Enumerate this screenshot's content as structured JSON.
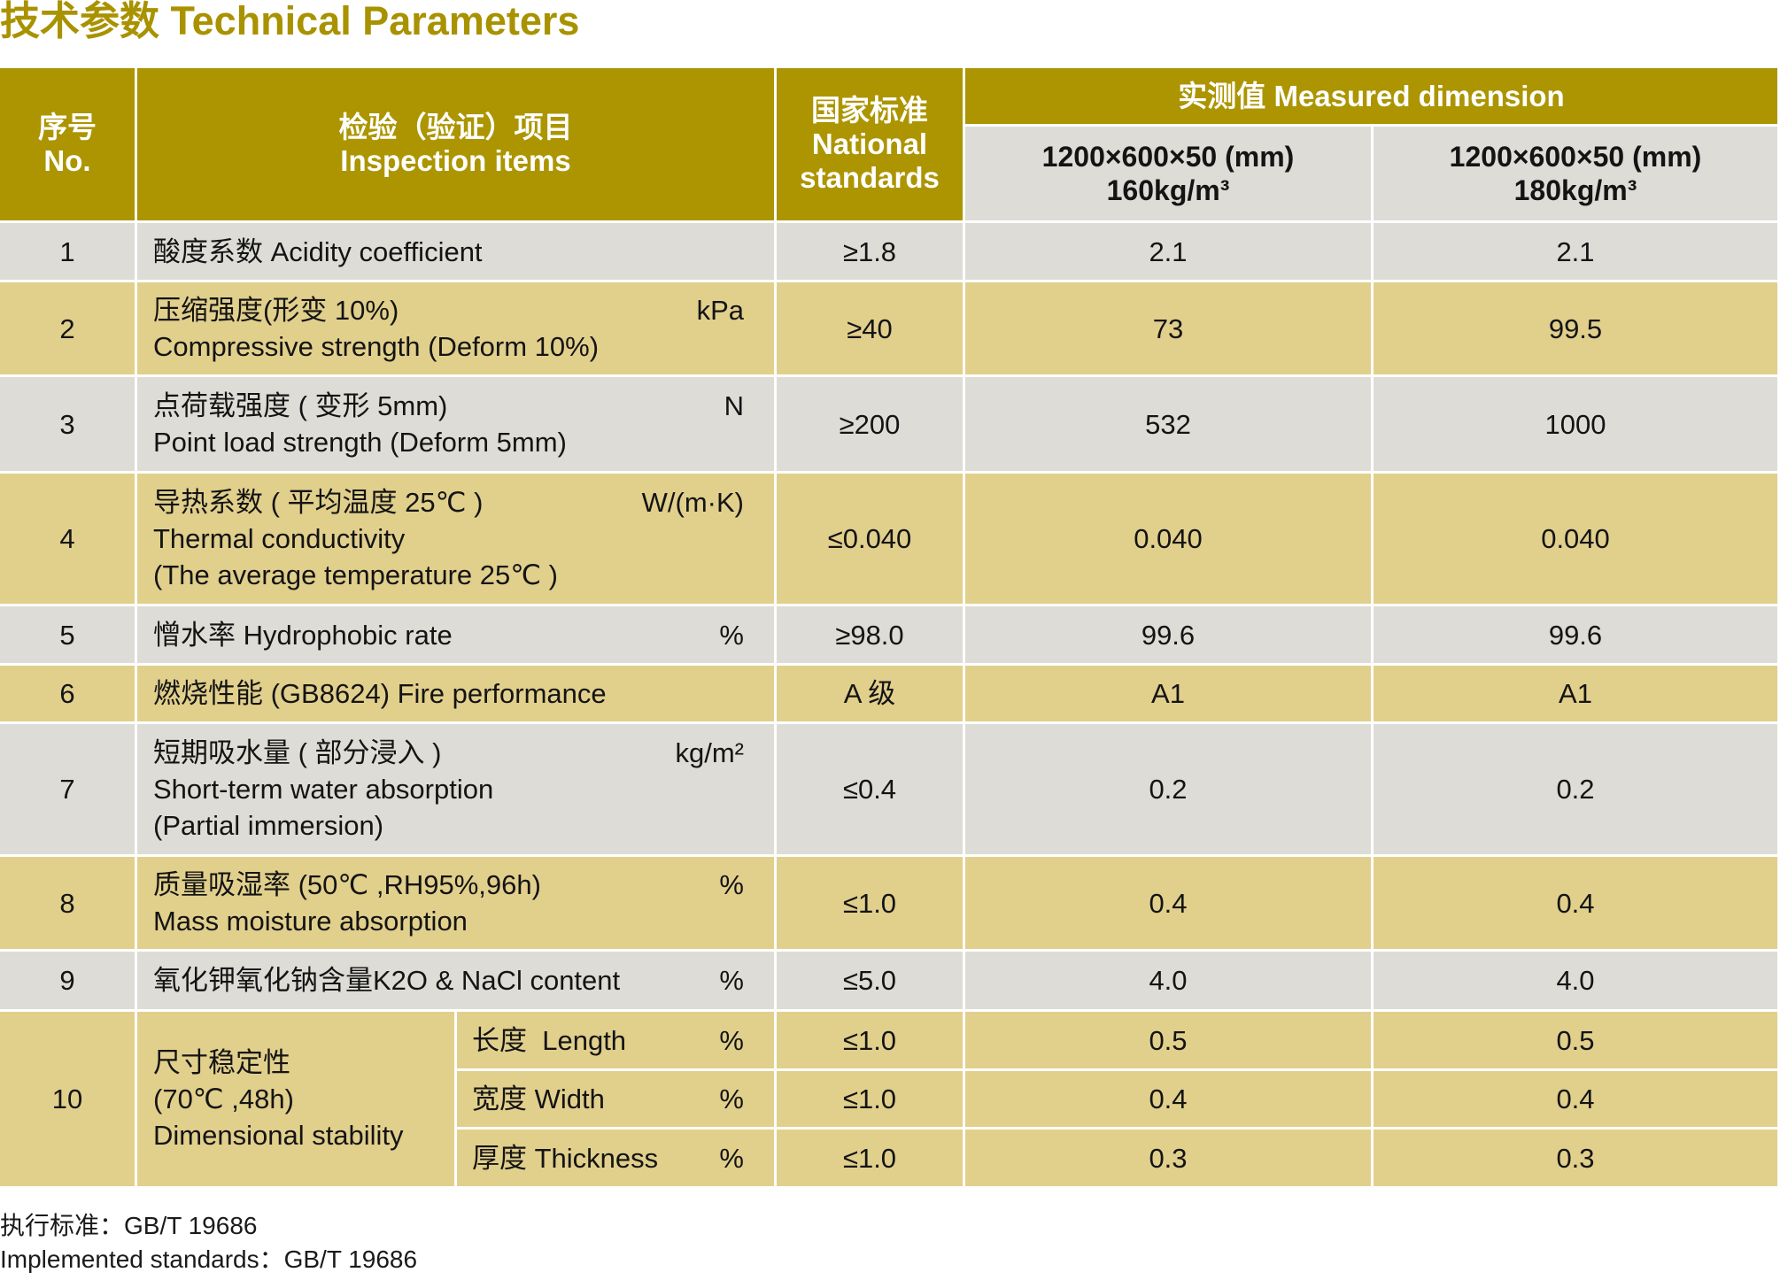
{
  "title": "技术参数 Technical Parameters",
  "colors": {
    "title": "#a99200",
    "header": "#ac9500",
    "row_gray": "#dddcd6",
    "row_tan": "#e1cf8c"
  },
  "table": {
    "header": {
      "no_zh": "序号",
      "no_en": "No.",
      "item_zh": "检验（验证）项目",
      "item_en": "Inspection items",
      "standard_zh": "国家标准",
      "standard_en": "National standards",
      "measured": "实测值 Measured dimension",
      "spec_a": {
        "size": "1200×600×50 (mm)",
        "density": "160kg/m³"
      },
      "spec_b": {
        "size": "1200×600×50 (mm)",
        "density": "180kg/m³"
      }
    },
    "rows": [
      {
        "no": "1",
        "lines": [
          "酸度系数 Acidity coefficient"
        ],
        "standard": "≥1.8",
        "value_a": "2.1",
        "value_b": "2.1"
      },
      {
        "no": "2",
        "lines": [
          "压缩强度(形变 10%)",
          "Compressive strength (Deform 10%)"
        ],
        "unit": "kPa",
        "standard": "≥40",
        "value_a": "73",
        "value_b": "99.5"
      },
      {
        "no": "3",
        "lines": [
          "点荷载强度 ( 变形 5mm)",
          "Point load strength (Deform 5mm)"
        ],
        "unit": "N",
        "standard": "≥200",
        "value_a": "532",
        "value_b": "1000"
      },
      {
        "no": "4",
        "lines": [
          "导热系数 ( 平均温度 25℃ )",
          "Thermal conductivity",
          "(The average temperature 25℃ )"
        ],
        "unit": "W/(m·K)",
        "standard": "≤0.040",
        "value_a": "0.040",
        "value_b": "0.040"
      },
      {
        "no": "5",
        "lines": [
          "憎水率 Hydrophobic rate"
        ],
        "unit": "%",
        "standard": "≥98.0",
        "value_a": "99.6",
        "value_b": "99.6"
      },
      {
        "no": "6",
        "lines": [
          "燃烧性能 (GB8624) Fire performance"
        ],
        "standard": "A 级",
        "value_a": "A1",
        "value_b": "A1"
      },
      {
        "no": "7",
        "lines": [
          "短期吸水量 ( 部分浸入 )",
          "Short-term water absorption",
          "(Partial immersion)"
        ],
        "unit": "kg/m²",
        "standard": "≤0.4",
        "value_a": "0.2",
        "value_b": "0.2"
      },
      {
        "no": "8",
        "lines": [
          "质量吸湿率 (50℃ ,RH95%,96h)",
          "Mass moisture absorption"
        ],
        "unit": "%",
        "standard": "≤1.0",
        "value_a": "0.4",
        "value_b": "0.4"
      },
      {
        "no": "9",
        "lines": [
          "氧化钾氧化钠含量K2O & NaCl content"
        ],
        "unit": "%",
        "standard": "≤5.0",
        "value_a": "4.0",
        "value_b": "4.0"
      }
    ],
    "dimensional": {
      "no": "10",
      "lines": [
        "尺寸稳定性",
        "(70℃ ,48h)",
        "Dimensional stability"
      ],
      "subrows": [
        {
          "label": "长度  Length",
          "unit": "%",
          "standard": "≤1.0",
          "value_a": "0.5",
          "value_b": "0.5"
        },
        {
          "label": "宽度 Width",
          "unit": "%",
          "standard": "≤1.0",
          "value_a": "0.4",
          "value_b": "0.4"
        },
        {
          "label": "厚度 Thickness",
          "unit": "%",
          "standard": "≤1.0",
          "value_a": "0.3",
          "value_b": "0.3"
        }
      ]
    }
  },
  "footer": {
    "line1": "执行标准：GB/T 19686",
    "line2": "Implemented standards：GB/T 19686"
  }
}
